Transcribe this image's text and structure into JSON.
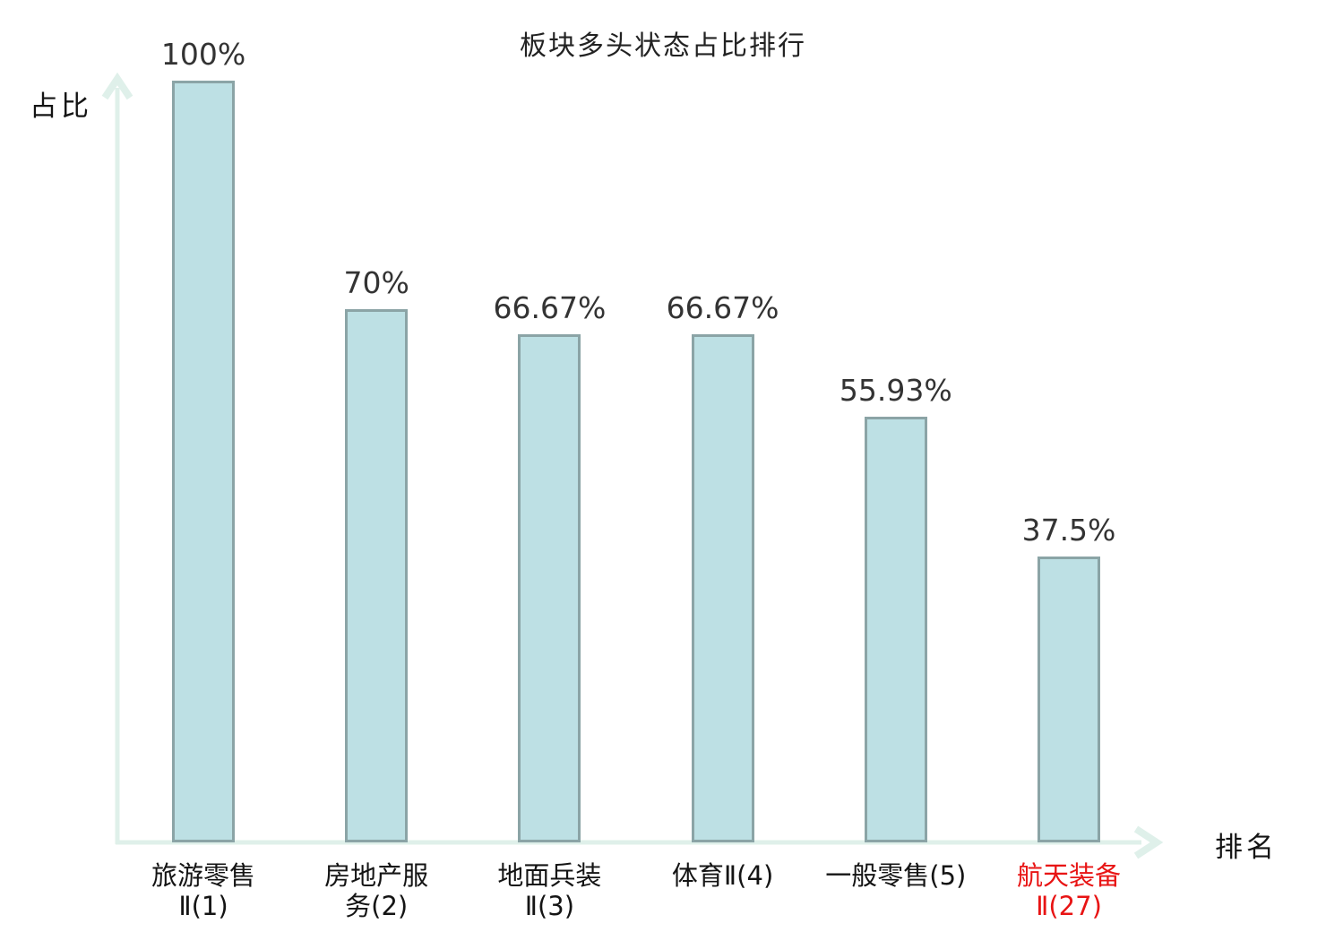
{
  "title": "板块多头状态占比排行",
  "axes": {
    "y_label": "占比",
    "x_label": "排名"
  },
  "colors": {
    "bar_fill": "#bde0e4",
    "bar_border": "#8ba4a6",
    "axis": "#dff0ea",
    "title_text": "#222222",
    "value_text": "#333333",
    "category_text": "#141414",
    "highlight_text": "#e81414"
  },
  "chart_data": {
    "type": "bar",
    "title": "板块多头状态占比排行",
    "xlabel": "排名",
    "ylabel": "占比",
    "ylim": [
      0,
      100
    ],
    "grid": false,
    "legend": null,
    "categories": [
      "旅游零售Ⅱ(1)",
      "房地产服务(2)",
      "地面兵装Ⅱ(3)",
      "体育Ⅱ(4)",
      "一般零售(5)",
      "航天装备Ⅱ(27)"
    ],
    "values": [
      100,
      70,
      66.67,
      66.67,
      55.93,
      37.5
    ],
    "value_labels": [
      "100%",
      "70%",
      "66.67%",
      "66.67%",
      "55.93%",
      "37.5%"
    ],
    "category_lines": [
      [
        "旅游零售",
        "Ⅱ(1)"
      ],
      [
        "房地产服",
        "务(2)"
      ],
      [
        "地面兵装",
        "Ⅱ(3)"
      ],
      [
        "体育Ⅱ(4)"
      ],
      [
        "一般零售(5)"
      ],
      [
        "航天装备",
        "Ⅱ(27)"
      ]
    ],
    "category_colors": [
      "#141414",
      "#141414",
      "#141414",
      "#141414",
      "#141414",
      "#e81414"
    ],
    "highlight_index": 5
  }
}
